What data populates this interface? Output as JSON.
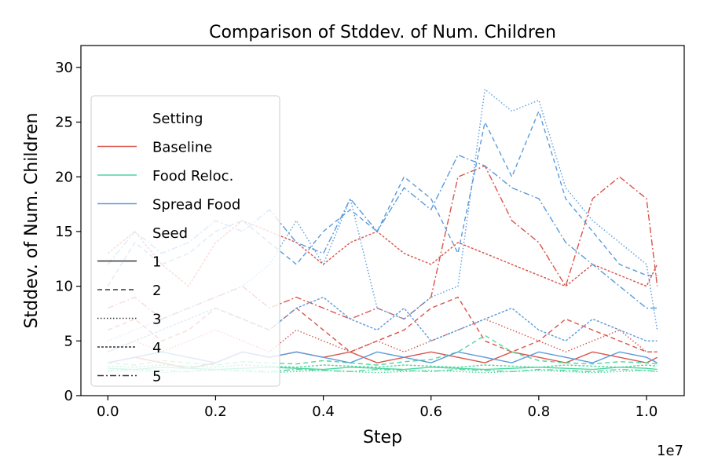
{
  "chart_data": {
    "type": "line",
    "title": "Comparison of Stddev. of Num. Children",
    "xlabel": "Step",
    "ylabel": "Stddev. of Num. Children",
    "x_offset_label": "1e7",
    "xlim": [
      -0.05,
      1.07
    ],
    "ylim": [
      0,
      32
    ],
    "x_ticks": [
      0.0,
      0.2,
      0.4,
      0.6,
      0.8,
      1.0
    ],
    "x_tick_labels": [
      "0.0",
      "0.2",
      "0.4",
      "0.6",
      "0.8",
      "1.0"
    ],
    "y_ticks": [
      0,
      5,
      10,
      15,
      20,
      25,
      30
    ],
    "y_tick_labels": [
      "0",
      "5",
      "10",
      "15",
      "20",
      "25",
      "30"
    ],
    "grid": false,
    "legend": {
      "placement": "left",
      "setting_title": "Setting",
      "seed_title": "Seed",
      "settings": [
        {
          "name": "Baseline",
          "color": "#d9534a"
        },
        {
          "name": "Food Reloc.",
          "color": "#4fd6a0"
        },
        {
          "name": "Spread Food",
          "color": "#5a9bdc"
        }
      ],
      "seeds": [
        {
          "name": "1",
          "dash": "solid"
        },
        {
          "name": "2",
          "dash": "dashed"
        },
        {
          "name": "3",
          "dash": "dotted"
        },
        {
          "name": "4",
          "dash": "dense-dashed"
        },
        {
          "name": "5",
          "dash": "dashdot"
        }
      ]
    },
    "series": [
      {
        "setting": "Baseline",
        "seed": "1",
        "color": "#d9534a",
        "x": [
          0.0,
          0.05,
          0.1,
          0.15,
          0.2,
          0.25,
          0.3,
          0.35,
          0.4,
          0.45,
          0.5,
          0.55,
          0.6,
          0.65,
          0.7,
          0.75,
          0.8,
          0.85,
          0.9,
          0.95,
          1.0,
          1.02
        ],
        "y": [
          3,
          3.5,
          3,
          2.5,
          3,
          4,
          3.5,
          4,
          3.5,
          4,
          3,
          3.5,
          4,
          3.5,
          3,
          4,
          3.5,
          3,
          4,
          3.5,
          3,
          3.5
        ]
      },
      {
        "setting": "Baseline",
        "seed": "2",
        "color": "#d9534a",
        "x": [
          0.0,
          0.05,
          0.1,
          0.15,
          0.2,
          0.25,
          0.3,
          0.35,
          0.4,
          0.45,
          0.5,
          0.55,
          0.6,
          0.65,
          0.7,
          0.75,
          0.8,
          0.85,
          0.9,
          0.95,
          1.0,
          1.02
        ],
        "y": [
          6,
          7,
          5,
          6,
          8,
          7,
          6,
          8,
          6,
          4,
          5,
          6,
          8,
          9,
          5,
          4,
          5,
          7,
          6,
          5,
          4,
          4
        ]
      },
      {
        "setting": "Baseline",
        "seed": "3",
        "color": "#d9534a",
        "x": [
          0.0,
          0.05,
          0.1,
          0.15,
          0.2,
          0.25,
          0.3,
          0.35,
          0.4,
          0.45,
          0.5,
          0.55,
          0.6,
          0.65,
          0.7,
          0.75,
          0.8,
          0.85,
          0.9,
          0.95,
          1.0,
          1.02
        ],
        "y": [
          4,
          5,
          4,
          5,
          6,
          5,
          4,
          6,
          5,
          4,
          5,
          4,
          5,
          6,
          7,
          6,
          5,
          4,
          5,
          6,
          4,
          4
        ]
      },
      {
        "setting": "Baseline",
        "seed": "4",
        "color": "#d9534a",
        "x": [
          0.0,
          0.05,
          0.1,
          0.15,
          0.2,
          0.25,
          0.3,
          0.35,
          0.4,
          0.45,
          0.5,
          0.55,
          0.6,
          0.65,
          0.7,
          0.75,
          0.8,
          0.85,
          0.9,
          0.95,
          1.0,
          1.02
        ],
        "y": [
          13,
          15,
          12,
          10,
          14,
          16,
          15,
          14,
          12,
          14,
          15,
          13,
          12,
          14,
          13,
          12,
          11,
          10,
          12,
          11,
          10,
          12
        ]
      },
      {
        "setting": "Baseline",
        "seed": "5",
        "color": "#d9534a",
        "x": [
          0.0,
          0.05,
          0.1,
          0.15,
          0.2,
          0.25,
          0.3,
          0.35,
          0.4,
          0.45,
          0.5,
          0.55,
          0.6,
          0.65,
          0.7,
          0.75,
          0.8,
          0.85,
          0.9,
          0.95,
          1.0,
          1.02
        ],
        "y": [
          8,
          9,
          7,
          8,
          9,
          10,
          8,
          9,
          8,
          7,
          8,
          7,
          9,
          20,
          21,
          16,
          14,
          10,
          18,
          20,
          18,
          10
        ]
      },
      {
        "setting": "Food Reloc.",
        "seed": "1",
        "color": "#4fd6a0",
        "x": [
          0.0,
          0.05,
          0.1,
          0.15,
          0.2,
          0.25,
          0.3,
          0.35,
          0.4,
          0.45,
          0.5,
          0.55,
          0.6,
          0.65,
          0.7,
          0.75,
          0.8,
          0.85,
          0.9,
          0.95,
          1.0,
          1.02
        ],
        "y": [
          2.5,
          2.4,
          2.6,
          2.5,
          2.4,
          2.5,
          2.6,
          2.5,
          2.4,
          2.6,
          2.5,
          2.4,
          2.6,
          2.5,
          2.4,
          2.5,
          2.6,
          2.5,
          2.4,
          2.6,
          2.5,
          2.4
        ]
      },
      {
        "setting": "Food Reloc.",
        "seed": "2",
        "color": "#4fd6a0",
        "x": [
          0.0,
          0.05,
          0.1,
          0.15,
          0.2,
          0.25,
          0.3,
          0.35,
          0.4,
          0.45,
          0.5,
          0.55,
          0.6,
          0.65,
          0.7,
          0.75,
          0.8,
          0.85,
          0.9,
          0.95,
          1.0,
          1.02
        ],
        "y": [
          3,
          2.8,
          3.2,
          3,
          2.8,
          3.1,
          3,
          2.9,
          3.2,
          3,
          2.8,
          3.1,
          3.3,
          4,
          5.5,
          4,
          3.2,
          3,
          2.9,
          3.1,
          3,
          2.9
        ]
      },
      {
        "setting": "Food Reloc.",
        "seed": "3",
        "color": "#4fd6a0",
        "x": [
          0.0,
          0.05,
          0.1,
          0.15,
          0.2,
          0.25,
          0.3,
          0.35,
          0.4,
          0.45,
          0.5,
          0.55,
          0.6,
          0.65,
          0.7,
          0.75,
          0.8,
          0.85,
          0.9,
          0.95,
          1.0,
          1.02
        ],
        "y": [
          2.2,
          2.3,
          2.1,
          2.2,
          2.3,
          2.2,
          2.1,
          2.2,
          2.3,
          2.2,
          2.1,
          2.2,
          2.3,
          2.2,
          2.1,
          2.2,
          2.3,
          2.2,
          2.1,
          2.2,
          2.3,
          2.2
        ]
      },
      {
        "setting": "Food Reloc.",
        "seed": "4",
        "color": "#4fd6a0",
        "x": [
          0.0,
          0.05,
          0.1,
          0.15,
          0.2,
          0.25,
          0.3,
          0.35,
          0.4,
          0.45,
          0.5,
          0.55,
          0.6,
          0.65,
          0.7,
          0.75,
          0.8,
          0.85,
          0.9,
          0.95,
          1.0,
          1.02
        ],
        "y": [
          2.7,
          2.6,
          2.8,
          2.7,
          2.6,
          2.8,
          2.7,
          2.6,
          2.8,
          2.7,
          2.6,
          2.8,
          2.7,
          2.6,
          2.8,
          2.7,
          2.6,
          2.8,
          2.7,
          2.6,
          2.8,
          2.7
        ]
      },
      {
        "setting": "Food Reloc.",
        "seed": "5",
        "color": "#4fd6a0",
        "x": [
          0.0,
          0.05,
          0.1,
          0.15,
          0.2,
          0.25,
          0.3,
          0.35,
          0.4,
          0.45,
          0.5,
          0.55,
          0.6,
          0.65,
          0.7,
          0.75,
          0.8,
          0.85,
          0.9,
          0.95,
          1.0,
          1.02
        ],
        "y": [
          2.3,
          2.4,
          2.3,
          2.2,
          2.4,
          2.3,
          2.2,
          2.4,
          2.3,
          2.2,
          2.4,
          2.3,
          2.2,
          2.4,
          2.3,
          2.2,
          2.4,
          2.3,
          2.2,
          2.4,
          2.3,
          2.2
        ]
      },
      {
        "setting": "Spread Food",
        "seed": "1",
        "color": "#5a9bdc",
        "x": [
          0.0,
          0.05,
          0.1,
          0.15,
          0.2,
          0.25,
          0.3,
          0.35,
          0.4,
          0.45,
          0.5,
          0.55,
          0.6,
          0.65,
          0.7,
          0.75,
          0.8,
          0.85,
          0.9,
          0.95,
          1.0,
          1.02
        ],
        "y": [
          3,
          3.5,
          4,
          3.5,
          3,
          4,
          3.5,
          4,
          3.5,
          3,
          4,
          3.5,
          3,
          4,
          3.5,
          3,
          4,
          3.5,
          3,
          4,
          3.5,
          3
        ]
      },
      {
        "setting": "Spread Food",
        "seed": "2",
        "color": "#5a9bdc",
        "x": [
          0.0,
          0.05,
          0.1,
          0.15,
          0.2,
          0.25,
          0.3,
          0.35,
          0.4,
          0.45,
          0.5,
          0.55,
          0.6,
          0.65,
          0.7,
          0.75,
          0.8,
          0.85,
          0.9,
          0.95,
          1.0,
          1.02
        ],
        "y": [
          10,
          14,
          12,
          13,
          15,
          16,
          14,
          12,
          15,
          17,
          15,
          20,
          18,
          13,
          25,
          20,
          26,
          18,
          15,
          12,
          11,
          11
        ]
      },
      {
        "setting": "Spread Food",
        "seed": "3",
        "color": "#5a9bdc",
        "x": [
          0.0,
          0.05,
          0.1,
          0.15,
          0.2,
          0.25,
          0.3,
          0.35,
          0.4,
          0.45,
          0.5,
          0.55,
          0.6,
          0.65,
          0.7,
          0.75,
          0.8,
          0.85,
          0.9,
          0.95,
          1.0,
          1.02
        ],
        "y": [
          5,
          6,
          7,
          8,
          9,
          10,
          12,
          16,
          12,
          18,
          8,
          7,
          9,
          10,
          28,
          26,
          27,
          19,
          16,
          14,
          12,
          6
        ]
      },
      {
        "setting": "Spread Food",
        "seed": "4",
        "color": "#5a9bdc",
        "x": [
          0.0,
          0.05,
          0.1,
          0.15,
          0.2,
          0.25,
          0.3,
          0.35,
          0.4,
          0.45,
          0.5,
          0.55,
          0.6,
          0.65,
          0.7,
          0.75,
          0.8,
          0.85,
          0.9,
          0.95,
          1.0,
          1.02
        ],
        "y": [
          4,
          5,
          6,
          7,
          8,
          7,
          6,
          8,
          9,
          7,
          6,
          8,
          5,
          6,
          7,
          8,
          6,
          5,
          7,
          6,
          5,
          5
        ]
      },
      {
        "setting": "Spread Food",
        "seed": "5",
        "color": "#5a9bdc",
        "x": [
          0.0,
          0.05,
          0.1,
          0.15,
          0.2,
          0.25,
          0.3,
          0.35,
          0.4,
          0.45,
          0.5,
          0.55,
          0.6,
          0.65,
          0.7,
          0.75,
          0.8,
          0.85,
          0.9,
          0.95,
          1.0,
          1.02
        ],
        "y": [
          12,
          15,
          13,
          14,
          16,
          15,
          17,
          14,
          13,
          18,
          15,
          19,
          17,
          22,
          21,
          19,
          18,
          14,
          12,
          10,
          8,
          8
        ]
      }
    ]
  }
}
